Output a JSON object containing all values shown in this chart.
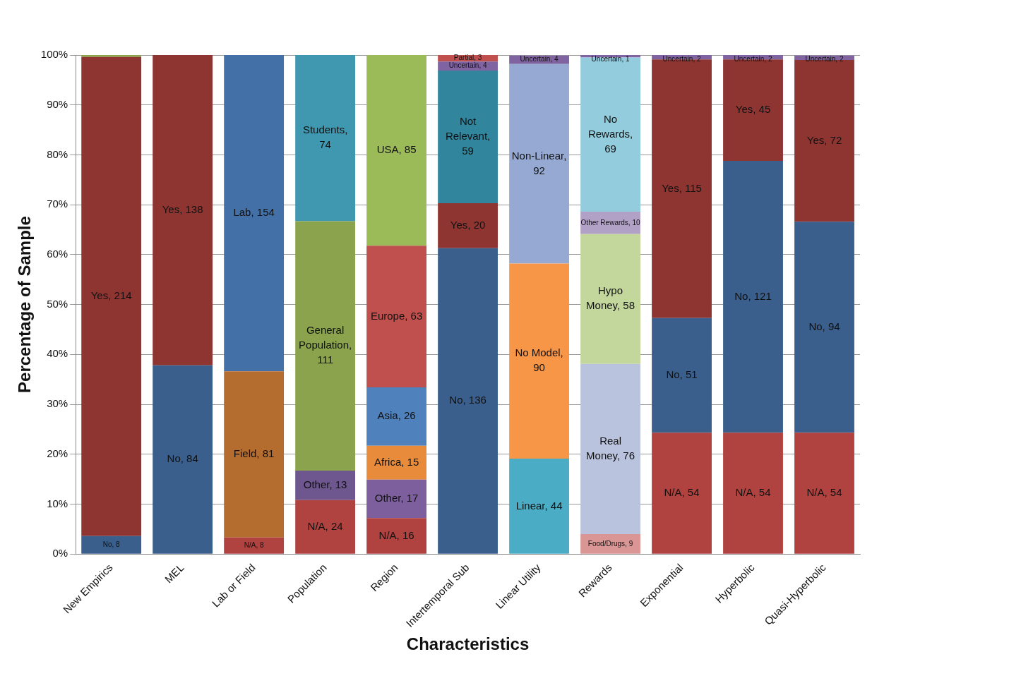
{
  "chart_data": {
    "type": "bar",
    "stacked": true,
    "xlabel": "Characteristics",
    "ylabel": "Percentage of Sample",
    "categories": [
      "New Empirics",
      "MEL",
      "Lab or Field",
      "Population",
      "Region",
      "Intertemporal Sub",
      "Linear Utility",
      "Rewards",
      "Exponential",
      "Hyperbolic",
      "Quasi-Hyperbolic"
    ],
    "ylim": [
      0,
      100
    ],
    "yticks": [
      {
        "value": 0,
        "label": "0%"
      },
      {
        "value": 10,
        "label": "10%"
      },
      {
        "value": 20,
        "label": "20%"
      },
      {
        "value": 30,
        "label": "30%"
      },
      {
        "value": 40,
        "label": "40%"
      },
      {
        "value": 50,
        "label": "50%"
      },
      {
        "value": 60,
        "label": "60%"
      },
      {
        "value": 70,
        "label": "70%"
      },
      {
        "value": 80,
        "label": "80%"
      },
      {
        "value": 90,
        "label": "90%"
      },
      {
        "value": 100,
        "label": "100%"
      }
    ],
    "grid": "y",
    "series": [
      {
        "values": [
          3.6,
          37.8,
          3.3,
          10.8,
          7.2,
          61.3,
          19.1,
          4.0,
          24.3,
          24.3,
          24.3
        ],
        "colors": [
          "#3a5f8c",
          "#3a5f8c",
          "#b0423f",
          "#b0423f",
          "#b0423f",
          "#3a5f8c",
          "#4bacc6",
          "#d99694",
          "#b0423f",
          "#b0423f",
          "#b0423f"
        ]
      },
      {
        "values": [
          96.0,
          62.2,
          33.3,
          5.9,
          7.7,
          9.0,
          39.1,
          34.1,
          23.0,
          54.5,
          42.3
        ],
        "colors": [
          "#8e3532",
          "#8e3532",
          "#b56c2f",
          "#6e568e",
          "#7d5f9e",
          "#8e3532",
          "#f79646",
          "#b9c3de",
          "#3a5f8c",
          "#3a5f8c",
          "#3a5f8c"
        ]
      },
      {
        "values": [
          0.4,
          null,
          63.4,
          50.0,
          6.8,
          26.6,
          40.0,
          26.0,
          51.8,
          20.3,
          32.4
        ],
        "colors": [
          "#8aa34c",
          "#8e3532",
          "#4470a8",
          "#8aa34c",
          "#e88c3c",
          "#31859c",
          "#95a9d3",
          "#c3d69b",
          "#8e3532",
          "#8e3532",
          "#8e3532"
        ]
      },
      {
        "values": [
          null,
          null,
          null,
          33.3,
          11.7,
          1.8,
          1.7,
          4.5,
          0.9,
          0.9,
          0.9
        ],
        "colors": [
          "#8064a2",
          "#8064a2",
          "#8064a2",
          "#3f98b0",
          "#4f81bd",
          "#8064a2",
          "#8064a2",
          "#b2a1c7",
          "#8064a2",
          "#8064a2",
          "#8064a2"
        ]
      },
      {
        "values": [
          null,
          null,
          null,
          null,
          28.4,
          1.3,
          null,
          30.9,
          null,
          null,
          null
        ],
        "colors": [
          "#c0504d",
          "#c0504d",
          "#c0504d",
          "#c0504d",
          "#c0504d",
          "#c0504d",
          "#93cddd",
          "#93cddd",
          "#93cddd",
          "#93cddd",
          "#93cddd"
        ]
      },
      {
        "values": [
          null,
          null,
          null,
          null,
          38.2,
          null,
          null,
          0.5,
          null,
          null,
          null
        ],
        "colors": [
          "#9bbb59",
          "#9bbb59",
          "#9bbb59",
          "#9bbb59",
          "#9bbb59",
          "#8064a2",
          "#8064a2",
          "#8064a2",
          "#8064a2",
          "#8064a2",
          "#8064a2"
        ]
      }
    ],
    "annotations": [
      "No, 8",
      "Yes, 214",
      "No, 84",
      "Yes, 138",
      "N/A, 8",
      "Field, 81",
      "Lab, 154",
      "N/A, 24",
      "Other, 13",
      "General Population, 111",
      "Students, 74",
      "N/A, 16",
      "Other, 17",
      "Africa, 15",
      "Asia, 26",
      "Europe, 63",
      "USA, 85",
      "No, 136",
      "Yes, 20",
      "Not Relevant, 59",
      "Uncertain, 4",
      "Partial, 3",
      "Linear, 44",
      "No Model, 90",
      "Non-Linear, 92",
      "Uncertain, 4",
      "Food/Drugs, 9",
      "Real Money, 76",
      "Hypo Money, 58",
      "Other Rewards, 10",
      "No Rewards, 69",
      "Uncertain, 1",
      "N/A, 54",
      "No, 51",
      "Yes, 115",
      "Uncertain, 2",
      "N/A, 54",
      "No, 121",
      "Yes, 45",
      "Uncertain, 2",
      "N/A, 54",
      "No, 94",
      "Yes, 72",
      "Uncertain, 2"
    ]
  }
}
